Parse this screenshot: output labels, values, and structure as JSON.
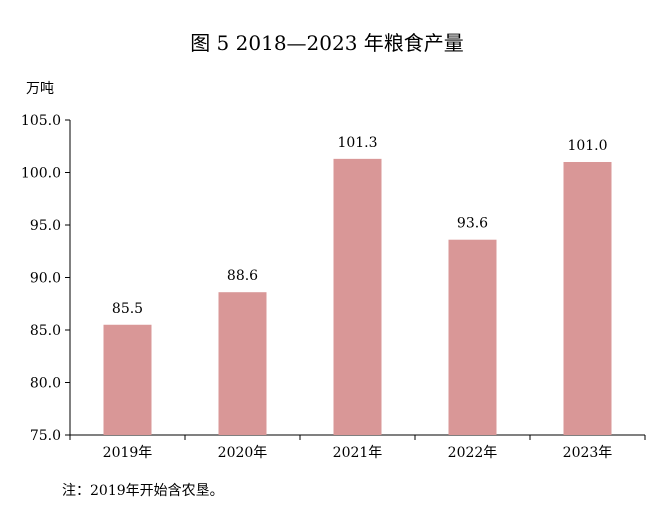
{
  "chart_data": {
    "type": "bar",
    "title": "图 5   2018—2023 年粮食产量",
    "ylabel": "万吨",
    "xlabel": "",
    "categories": [
      "2019年",
      "2020年",
      "2021年",
      "2022年",
      "2023年"
    ],
    "values": [
      85.5,
      88.6,
      101.3,
      93.6,
      101.0
    ],
    "value_labels": [
      "85.5",
      "88.6",
      "101.3",
      "93.6",
      "101.0"
    ],
    "ylim": [
      75.0,
      105.0
    ],
    "yticks": [
      75.0,
      80.0,
      85.0,
      90.0,
      95.0,
      100.0,
      105.0
    ],
    "ytick_labels": [
      "75.0",
      "80.0",
      "85.0",
      "90.0",
      "95.0",
      "100.0",
      "105.0"
    ],
    "grid": false,
    "bar_color": "#d99797",
    "axis_color": "#000000",
    "note": "注：2019年开始含农垦。"
  }
}
